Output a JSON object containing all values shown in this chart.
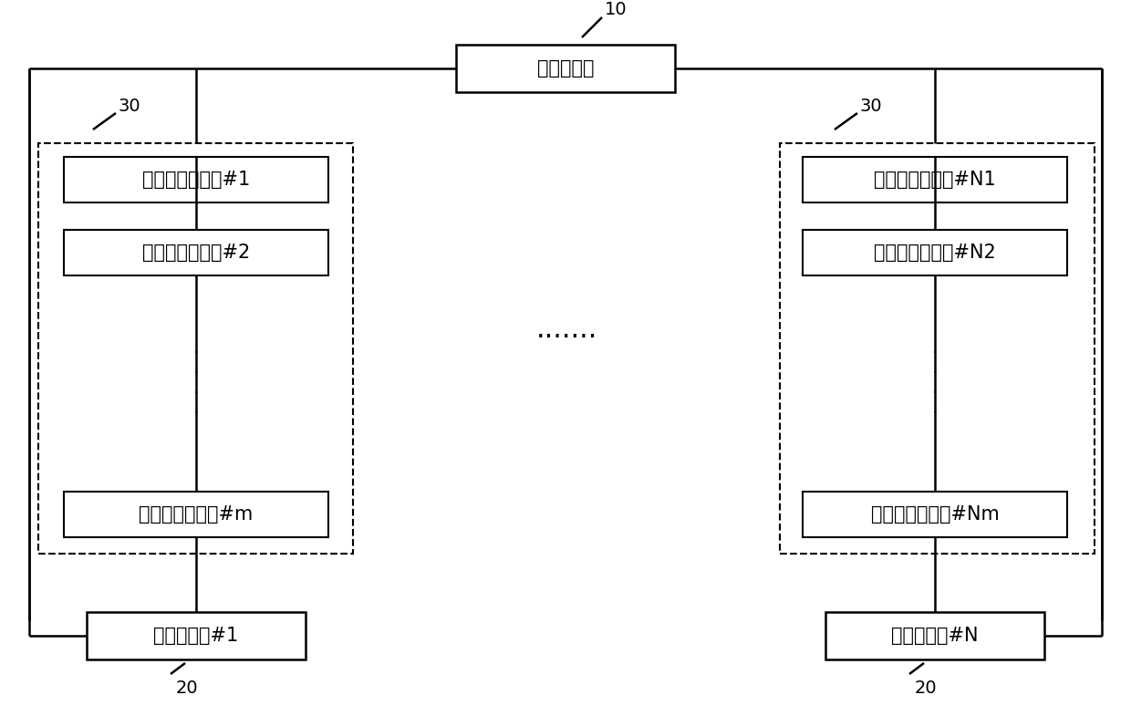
{
  "bg_color": "#ffffff",
  "line_color": "#000000",
  "main_processor_label": "主控处理器",
  "label_10": "10",
  "label_20_left": "20",
  "label_20_right": "20",
  "label_30_left": "30",
  "label_30_right": "30",
  "detector_left_1": "单光子探测单元#1",
  "detector_left_2": "单光子探测单元#2",
  "detector_left_m": "单光子探测单元#m",
  "detector_right_1": "单光子探测单元#N1",
  "detector_right_2": "单光子探测单元#N2",
  "detector_right_m": "单光子探测单元#Nm",
  "converter_left": "数字转换器#1",
  "converter_right": "数字转换器#N",
  "dots_h": ".......",
  "font_size_box": 15,
  "font_size_label": 14
}
